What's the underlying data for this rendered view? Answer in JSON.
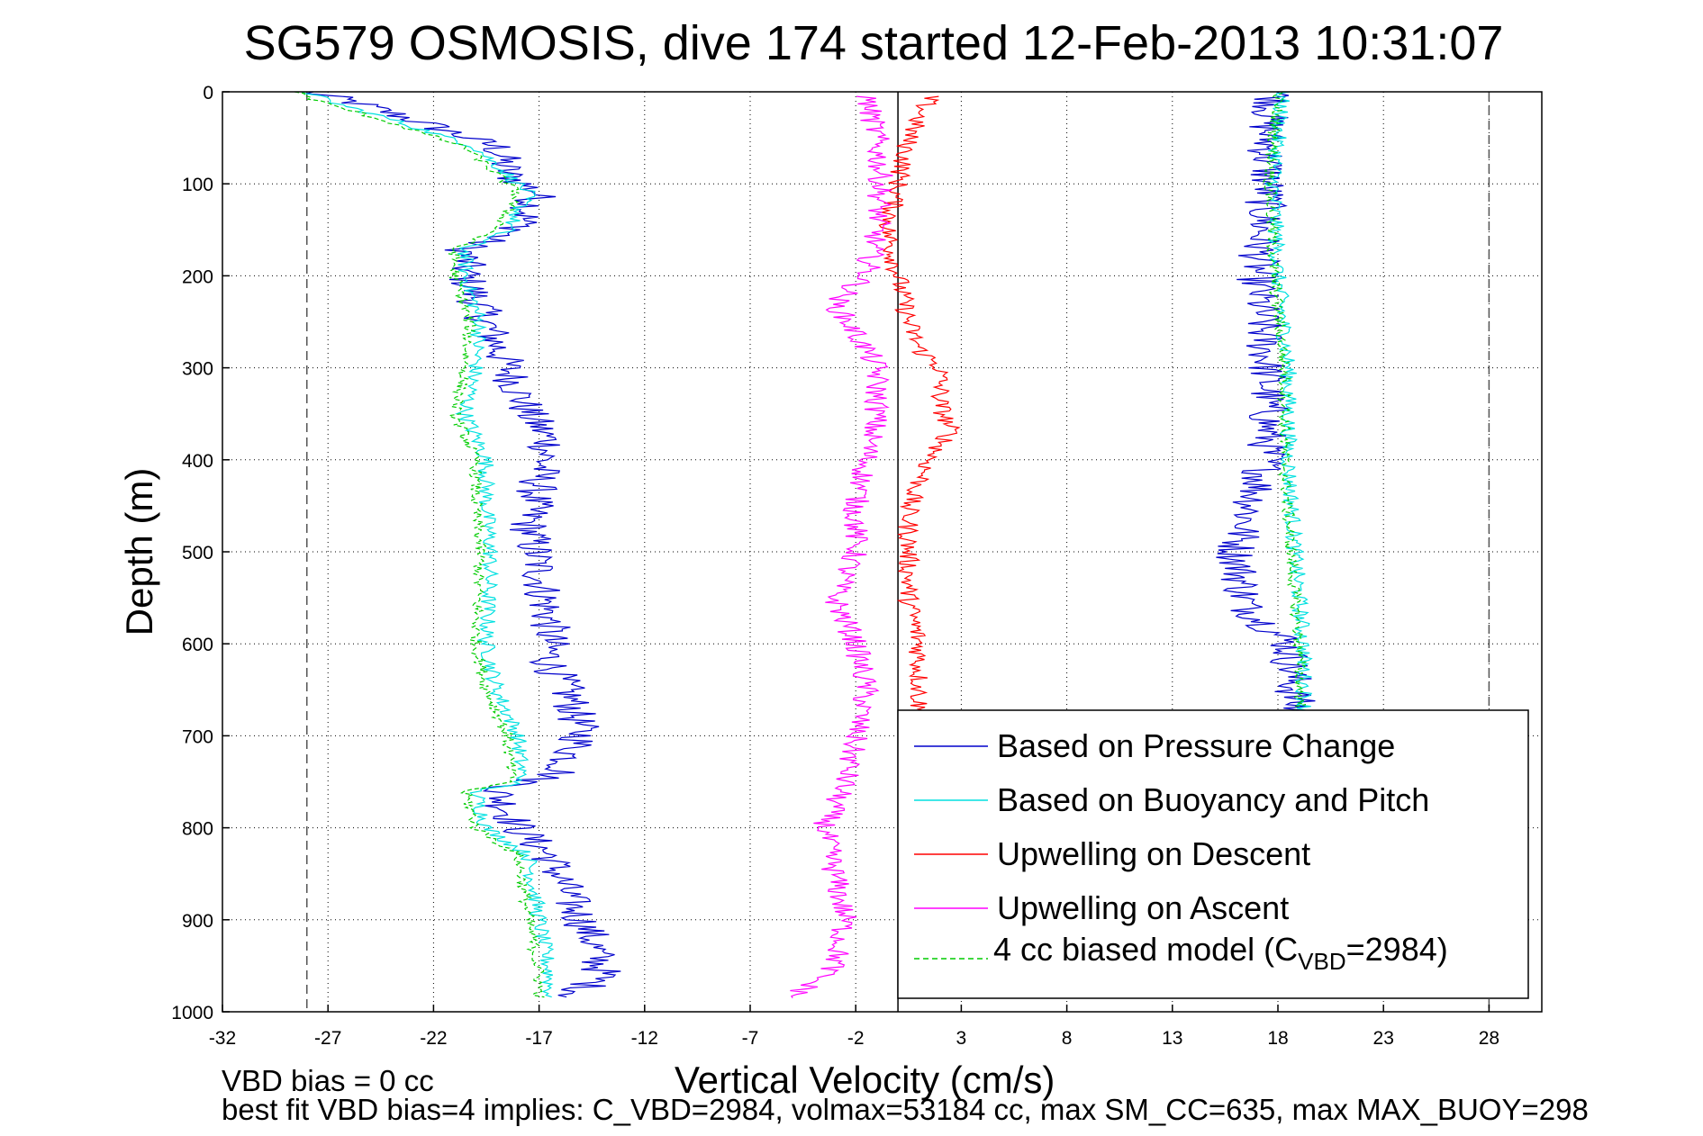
{
  "chart_data": {
    "type": "line",
    "title": "SG579 OSMOSIS, dive 174 started 12-Feb-2013 10:31:07",
    "xlabel": "Vertical Velocity (cm/s)",
    "ylabel": "Depth (m)",
    "xlim": [
      -32,
      30.5
    ],
    "ylim": [
      1000,
      0
    ],
    "y_reversed": true,
    "grid": true,
    "x_ticks": [
      -32,
      -27,
      -22,
      -17,
      -12,
      -7,
      -2,
      3,
      8,
      13,
      18,
      23,
      28
    ],
    "y_ticks": [
      0,
      100,
      200,
      300,
      400,
      500,
      600,
      700,
      800,
      900,
      1000
    ],
    "legend_position": "bottom-right",
    "reference_lines": {
      "dashed_x": [
        -28,
        28
      ],
      "solid_x": 0
    },
    "notes": [
      "VBD bias = 0 cc",
      "best fit VBD bias=4 implies: C_VBD=2984, volmax=53184 cc, max SM_CC=635, max MAX_BUOY=298"
    ],
    "series": [
      {
        "name": "Based on Pressure Change",
        "color": "#0000cc",
        "style": "solid",
        "noise": 1.0,
        "segments": [
          {
            "depth": [
              0,
              10,
              30,
              60,
              90,
              110,
              130,
              150,
              170,
              200,
              250,
              300,
              350,
              380,
              420,
              470,
              520,
              580,
              620,
              660,
              700,
              740,
              760,
              800,
              830,
              880,
              920,
              960,
              985
            ],
            "x": [
              -28,
              -26,
              -23,
              -19,
              -18.5,
              -17,
              -17.5,
              -18,
              -20.5,
              -20.5,
              -19.5,
              -18.5,
              -17.5,
              -16.5,
              -17,
              -17.5,
              -17,
              -16.5,
              -16.5,
              -15.5,
              -15,
              -16,
              -19,
              -18,
              -16.5,
              -15.5,
              -14.5,
              -14,
              -15.5
            ]
          },
          {
            "depth": [
              0,
              30,
              100,
              200,
              300,
              400,
              500,
              560,
              600,
              700
            ],
            "x": [
              18,
              17.5,
              17.5,
              17,
              17.5,
              17.5,
              16,
              16.5,
              18.5,
              19
            ]
          }
        ]
      },
      {
        "name": "Based on Buoyancy and Pitch",
        "color": "#00e0e0",
        "style": "solid",
        "noise": 0.4,
        "segments": [
          {
            "depth": [
              0,
              10,
              30,
              60,
              90,
              110,
              130,
              150,
              170,
              200,
              250,
              300,
              350,
              400,
              450,
              500,
              600,
              650,
              700,
              750,
              760,
              800,
              830,
              900,
              960,
              985
            ],
            "x": [
              -28,
              -27,
              -24,
              -20,
              -18.5,
              -17.5,
              -18,
              -18.5,
              -20.5,
              -20.5,
              -19.8,
              -20,
              -20.5,
              -19.5,
              -19.5,
              -19.3,
              -19.5,
              -19,
              -18,
              -17.8,
              -20,
              -19.5,
              -17.5,
              -17,
              -16.5,
              -16.5
            ]
          },
          {
            "depth": [
              0,
              100,
              200,
              300,
              400,
              500,
              600,
              700
            ],
            "x": [
              18.2,
              17.8,
              18,
              18.5,
              18.5,
              18.8,
              19.2,
              19.3
            ]
          }
        ]
      },
      {
        "name": "Upwelling on Descent",
        "color": "#ff0000",
        "style": "solid",
        "noise": 0.5,
        "segments": [
          {
            "depth": [
              5,
              50,
              100,
              150,
              200,
              250,
              280,
              300,
              340,
              370,
              400,
              450,
              500,
              550,
              600,
              650,
              700
            ],
            "x": [
              1.5,
              0.5,
              0,
              -0.5,
              0,
              0.5,
              1,
              2,
              2,
              2.5,
              1.5,
              0.5,
              0.5,
              0.5,
              1,
              1,
              1
            ]
          }
        ]
      },
      {
        "name": "Upwelling on Ascent",
        "color": "#ff00ff",
        "style": "solid",
        "noise": 0.6,
        "segments": [
          {
            "depth": [
              5,
              50,
              100,
              150,
              200,
              230,
              280,
              300,
              350,
              400,
              450,
              500,
              550,
              600,
              650,
              700,
              750,
              800,
              850,
              900,
              950,
              985
            ],
            "x": [
              -1.5,
              -1,
              -0.8,
              -1,
              -1.5,
              -3,
              -1.5,
              -1,
              -1,
              -1.5,
              -2,
              -2,
              -3,
              -2,
              -1.5,
              -2,
              -2.5,
              -3.5,
              -3,
              -2.5,
              -3,
              -5
            ]
          }
        ]
      },
      {
        "name": "4 cc biased model (C_VBD=2984)",
        "color": "#00cc00",
        "style": "dashed",
        "noise": 0.3,
        "segments": [
          {
            "depth": [
              0,
              10,
              30,
              60,
              90,
              110,
              130,
              150,
              170,
              200,
              250,
              300,
              350,
              400,
              450,
              500,
              600,
              650,
              700,
              750,
              760,
              800,
              830,
              900,
              960,
              985
            ],
            "x": [
              -28.5,
              -27.5,
              -24.5,
              -20.5,
              -19,
              -18,
              -18.5,
              -19,
              -21,
              -21,
              -20.3,
              -20.5,
              -21,
              -20,
              -20,
              -19.8,
              -20,
              -19.5,
              -18.5,
              -18.3,
              -20.5,
              -20,
              -18,
              -17.5,
              -17,
              -17
            ]
          },
          {
            "depth": [
              0,
              100,
              200,
              300,
              400,
              500,
              600,
              700
            ],
            "x": [
              18,
              17.6,
              17.8,
              18.3,
              18.3,
              18.6,
              19,
              19.1
            ]
          }
        ]
      }
    ]
  },
  "legend": {
    "entries": [
      {
        "label": "Based on Pressure Change",
        "color": "#0000cc",
        "dashed": false
      },
      {
        "label": "Based on Buoyancy and Pitch",
        "color": "#00e0e0",
        "dashed": false
      },
      {
        "label": "Upwelling on Descent",
        "color": "#ff0000",
        "dashed": false
      },
      {
        "label": "Upwelling on Ascent",
        "color": "#ff00ff",
        "dashed": false
      }
    ],
    "model_entry": {
      "prefix": "4 cc biased model (C",
      "subscript": "VBD",
      "suffix": "=2984)",
      "color": "#00cc00"
    }
  }
}
